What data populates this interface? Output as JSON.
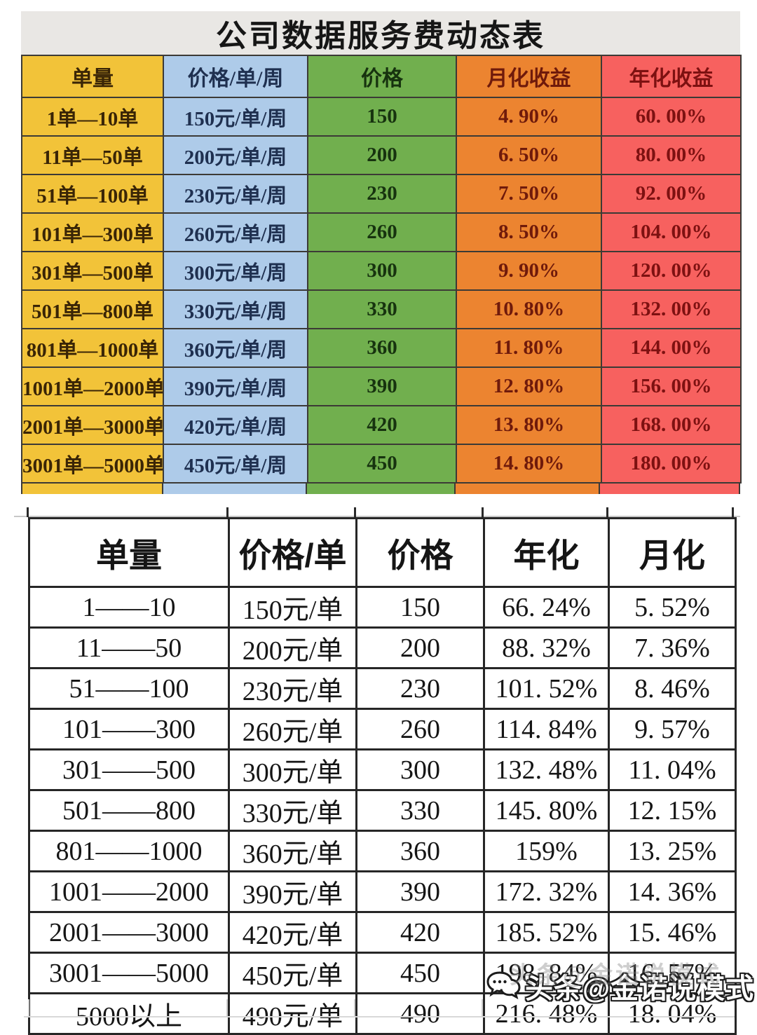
{
  "top_table": {
    "title": "公司数据服务费动态表",
    "columns": [
      {
        "label": "单量",
        "bg": "#F2C339",
        "text": "#3A2506"
      },
      {
        "label": "价格/单/周",
        "bg": "#AECBE9",
        "text": "#1F3050"
      },
      {
        "label": "价格",
        "bg": "#71AF4E",
        "text": "#17330F"
      },
      {
        "label": "月化收益",
        "bg": "#EC8430",
        "text": "#6F1A0B"
      },
      {
        "label": "年化收益",
        "bg": "#F7615F",
        "text": "#7D1111"
      }
    ],
    "rows": [
      [
        "1单—10单",
        "150元/单/周",
        "150",
        "4. 90%",
        "60. 00%"
      ],
      [
        "11单—50单",
        "200元/单/周",
        "200",
        "6. 50%",
        "80. 00%"
      ],
      [
        "51单—100单",
        "230元/单/周",
        "230",
        "7. 50%",
        "92. 00%"
      ],
      [
        "101单—300单",
        "260元/单/周",
        "260",
        "8. 50%",
        "104. 00%"
      ],
      [
        "301单—500单",
        "300元/单/周",
        "300",
        "9. 90%",
        "120. 00%"
      ],
      [
        "501单—800单",
        "330元/单/周",
        "330",
        "10. 80%",
        "132. 00%"
      ],
      [
        "801单—1000单",
        "360元/单/周",
        "360",
        "11. 80%",
        "144. 00%"
      ],
      [
        "1001单—2000单",
        "390元/单/周",
        "390",
        "12. 80%",
        "156. 00%"
      ],
      [
        "2001单—3000单",
        "420元/单/周",
        "420",
        "13. 80%",
        "168. 00%"
      ],
      [
        "3001单—5000单",
        "450元/单/周",
        "450",
        "14. 80%",
        "180. 00%"
      ]
    ]
  },
  "bottom_table": {
    "headers": [
      "单量",
      "价格/单",
      "价格",
      "年化",
      "月化"
    ],
    "rows": [
      [
        "1——10",
        "150元/单",
        "150",
        "66. 24%",
        "5. 52%"
      ],
      [
        "11——50",
        "200元/单",
        "200",
        "88. 32%",
        "7. 36%"
      ],
      [
        "51——100",
        "230元/单",
        "230",
        "101. 52%",
        "8. 46%"
      ],
      [
        "101——300",
        "260元/单",
        "260",
        "114. 84%",
        "9. 57%"
      ],
      [
        "301——500",
        "300元/单",
        "300",
        "132. 48%",
        "11. 04%"
      ],
      [
        "501——800",
        "330元/单",
        "330",
        "145. 80%",
        "12. 15%"
      ],
      [
        "801——1000",
        "360元/单",
        "360",
        "159%",
        "13. 25%"
      ],
      [
        "1001——2000",
        "390元/单",
        "390",
        "172. 32%",
        "14. 36%"
      ],
      [
        "2001——3000",
        "420元/单",
        "420",
        "185. 52%",
        "15. 46%"
      ],
      [
        "3001——5000",
        "450元/单",
        "450",
        "198. 84%",
        "16. 57%"
      ],
      [
        "5000以上",
        "490元/单",
        "490",
        "216. 48%",
        "18. 04%"
      ]
    ]
  },
  "watermark": {
    "text": "头条@金诺说模式",
    "icon": "chat-bubbles-icon"
  },
  "colors": {
    "title_bar_bg": "#E9E7E4"
  }
}
